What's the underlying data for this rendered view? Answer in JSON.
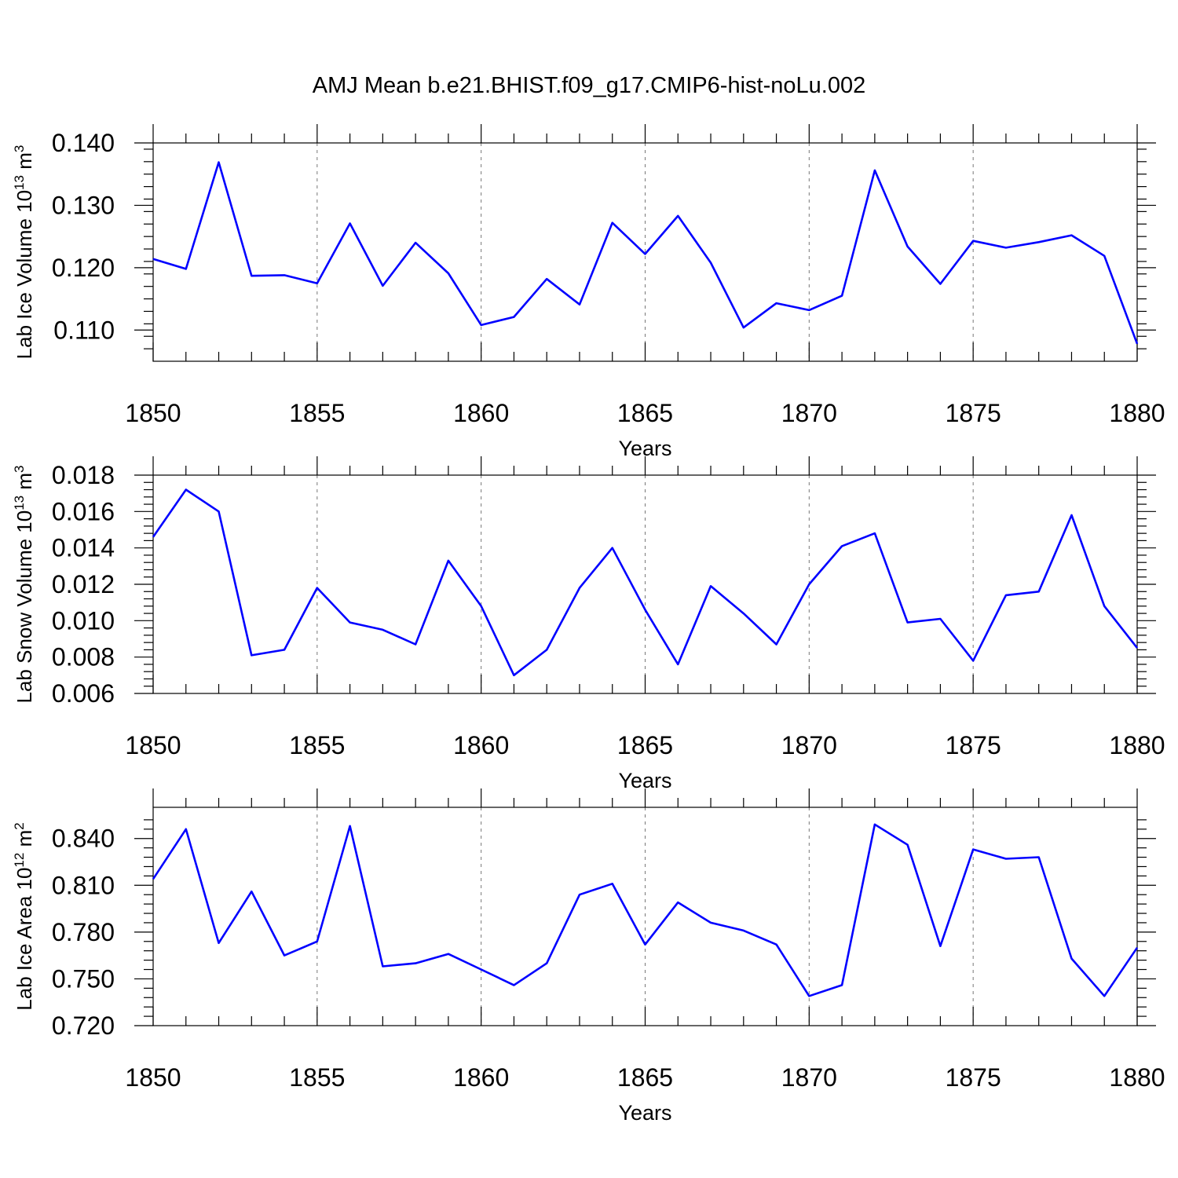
{
  "chart_data": {
    "title": "AMJ Mean b.e21.BHIST.f09_g17.CMIP6-hist-noLu.002",
    "line_color": "#0000ff",
    "grid_color": "#777777",
    "panels": [
      {
        "type": "line",
        "ylabel_text": "Lab Ice Volume 10",
        "ylabel_exp": "13",
        "ylabel_unit": " m",
        "ylabel_unit_exp": "3",
        "xlabel": "Years",
        "xlim": [
          1850,
          1880
        ],
        "ylim": [
          0.105,
          0.14
        ],
        "yticks": [
          0.11,
          0.12,
          0.13,
          0.14
        ],
        "ytick_labels": [
          "0.110",
          "0.120",
          "0.130",
          "0.140"
        ],
        "yminor_step": 0.002,
        "xticks": [
          1850,
          1855,
          1860,
          1865,
          1870,
          1875,
          1880
        ],
        "xtick_labels": [
          "1850",
          "1855",
          "1860",
          "1865",
          "1870",
          "1875",
          "1880"
        ],
        "grid_x": [
          1855,
          1860,
          1865,
          1870,
          1875
        ],
        "x": [
          1850,
          1851,
          1852,
          1853,
          1854,
          1855,
          1856,
          1857,
          1858,
          1859,
          1860,
          1861,
          1862,
          1863,
          1864,
          1865,
          1866,
          1867,
          1868,
          1869,
          1870,
          1871,
          1872,
          1873,
          1874,
          1875,
          1876,
          1877,
          1878,
          1879,
          1880
        ],
        "values": [
          0.1214,
          0.1198,
          0.1369,
          0.1187,
          0.1188,
          0.1175,
          0.1271,
          0.1171,
          0.124,
          0.1191,
          0.1108,
          0.1121,
          0.1182,
          0.1141,
          0.1272,
          0.1222,
          0.1283,
          0.1208,
          0.1104,
          0.1143,
          0.1132,
          0.1155,
          0.1356,
          0.1234,
          0.1174,
          0.1243,
          0.1232,
          0.1241,
          0.1252,
          0.1219,
          0.1078
        ]
      },
      {
        "type": "line",
        "ylabel_text": "Lab Snow Volume 10",
        "ylabel_exp": "13",
        "ylabel_unit": " m",
        "ylabel_unit_exp": "3",
        "xlabel": "Years",
        "xlim": [
          1850,
          1880
        ],
        "ylim": [
          0.006,
          0.018
        ],
        "yticks": [
          0.006,
          0.008,
          0.01,
          0.012,
          0.014,
          0.016,
          0.018
        ],
        "ytick_labels": [
          "0.006",
          "0.008",
          "0.010",
          "0.012",
          "0.014",
          "0.016",
          "0.018"
        ],
        "yminor_step": 0.0004,
        "xticks": [
          1850,
          1855,
          1860,
          1865,
          1870,
          1875,
          1880
        ],
        "xtick_labels": [
          "1850",
          "1855",
          "1860",
          "1865",
          "1870",
          "1875",
          "1880"
        ],
        "grid_x": [
          1855,
          1860,
          1865,
          1870,
          1875
        ],
        "x": [
          1850,
          1851,
          1852,
          1853,
          1854,
          1855,
          1856,
          1857,
          1858,
          1859,
          1860,
          1861,
          1862,
          1863,
          1864,
          1865,
          1866,
          1867,
          1868,
          1869,
          1870,
          1871,
          1872,
          1873,
          1874,
          1875,
          1876,
          1877,
          1878,
          1879,
          1880
        ],
        "values": [
          0.0146,
          0.0172,
          0.016,
          0.0081,
          0.0084,
          0.0118,
          0.0099,
          0.0095,
          0.0087,
          0.0133,
          0.0108,
          0.007,
          0.0084,
          0.0118,
          0.014,
          0.0106,
          0.0076,
          0.0119,
          0.0104,
          0.0087,
          0.012,
          0.0141,
          0.0148,
          0.0099,
          0.0101,
          0.0078,
          0.0114,
          0.0116,
          0.0158,
          0.0108,
          0.0085
        ]
      },
      {
        "type": "line",
        "ylabel_text": "Lab Ice Area 10",
        "ylabel_exp": "12",
        "ylabel_unit": " m",
        "ylabel_unit_exp": "2",
        "xlabel": "Years",
        "xlim": [
          1850,
          1880
        ],
        "ylim": [
          0.72,
          0.86
        ],
        "yticks": [
          0.72,
          0.75,
          0.78,
          0.81,
          0.84
        ],
        "ytick_labels": [
          "0.720",
          "0.750",
          "0.780",
          "0.810",
          "0.840"
        ],
        "yminor_step": 0.006,
        "xticks": [
          1850,
          1855,
          1860,
          1865,
          1870,
          1875,
          1880
        ],
        "xtick_labels": [
          "1850",
          "1855",
          "1860",
          "1865",
          "1870",
          "1875",
          "1880"
        ],
        "grid_x": [
          1855,
          1860,
          1865,
          1870,
          1875
        ],
        "x": [
          1850,
          1851,
          1852,
          1853,
          1854,
          1855,
          1856,
          1857,
          1858,
          1859,
          1860,
          1861,
          1862,
          1863,
          1864,
          1865,
          1866,
          1867,
          1868,
          1869,
          1870,
          1871,
          1872,
          1873,
          1874,
          1875,
          1876,
          1877,
          1878,
          1879,
          1880
        ],
        "values": [
          0.814,
          0.846,
          0.773,
          0.806,
          0.765,
          0.774,
          0.848,
          0.758,
          0.76,
          0.766,
          0.756,
          0.746,
          0.76,
          0.804,
          0.811,
          0.772,
          0.799,
          0.786,
          0.781,
          0.772,
          0.739,
          0.746,
          0.849,
          0.836,
          0.771,
          0.833,
          0.827,
          0.828,
          0.763,
          0.739,
          0.77
        ]
      }
    ]
  }
}
